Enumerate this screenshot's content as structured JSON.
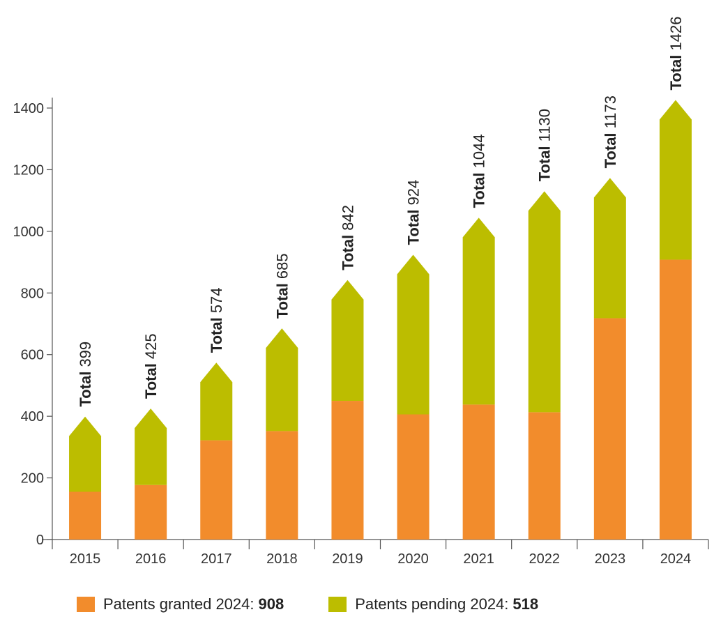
{
  "chart_data": {
    "type": "bar",
    "stacked": true,
    "categories": [
      "2015",
      "2016",
      "2017",
      "2018",
      "2019",
      "2020",
      "2021",
      "2022",
      "2023",
      "2024"
    ],
    "series": [
      {
        "name": "Patents granted",
        "color": "#f28c2c",
        "values": [
          155,
          177,
          322,
          352,
          450,
          406,
          438,
          413,
          718,
          908
        ]
      },
      {
        "name": "Patents pending",
        "color": "#bcbd00",
        "values": [
          244,
          248,
          252,
          333,
          392,
          518,
          606,
          717,
          455,
          518
        ]
      }
    ],
    "totals": [
      399,
      425,
      574,
      685,
      842,
      924,
      1044,
      1130,
      1173,
      1426
    ],
    "total_word": "Total",
    "yticks": [
      0,
      200,
      400,
      600,
      800,
      1000,
      1200,
      1400
    ],
    "ylim": [
      0,
      1400
    ],
    "grid": false,
    "legend_position": "bottom-left"
  },
  "legend": {
    "items": [
      {
        "label": "Patents granted 2024:",
        "value": "908",
        "color": "#f28c2c"
      },
      {
        "label": "Patents pending 2024:",
        "value": "518",
        "color": "#bcbd00"
      }
    ]
  }
}
